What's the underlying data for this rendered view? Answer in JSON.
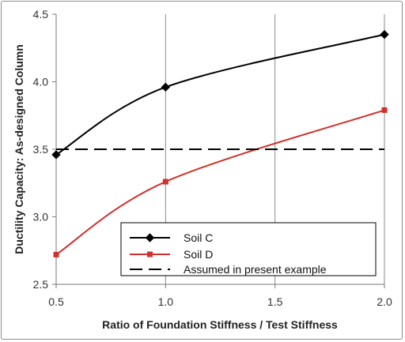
{
  "chart_data": {
    "type": "line",
    "xlabel": "Ratio of Foundation Stiffness / Test Stiffness",
    "ylabel": "Ductility Capacity: As-designed Column",
    "xlim": [
      0.5,
      2.0
    ],
    "ylim": [
      2.5,
      4.5
    ],
    "x_ticks": [
      "0.5",
      "1.0",
      "1.5",
      "2.0"
    ],
    "y_ticks": [
      "2.5",
      "3.0",
      "3.5",
      "4.0",
      "4.5"
    ],
    "grid": "vertical",
    "legend_position": "lower-right",
    "series": [
      {
        "name": "Soil C",
        "color": "#000000",
        "marker": "diamond",
        "style": "solid",
        "x": [
          0.5,
          1.0,
          2.0
        ],
        "y": [
          3.46,
          3.96,
          4.35
        ]
      },
      {
        "name": "Soil D",
        "color": "#d0312d",
        "marker": "square",
        "style": "solid",
        "x": [
          0.5,
          1.0,
          2.0
        ],
        "y": [
          2.72,
          3.26,
          3.79
        ]
      },
      {
        "name": "Assumed in present example",
        "color": "#000000",
        "marker": "none",
        "style": "dashed",
        "x": [
          0.5,
          2.0
        ],
        "y": [
          3.5,
          3.5
        ]
      }
    ]
  }
}
